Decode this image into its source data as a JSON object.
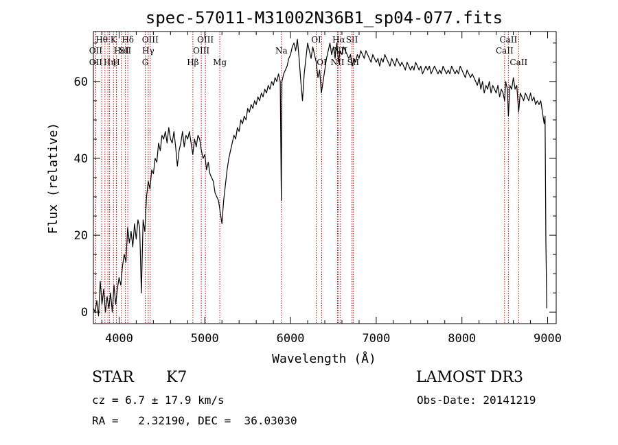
{
  "chart_data": {
    "type": "line",
    "title": "spec-57011-M31002N36B1_sp04-077.fits",
    "xlabel": "Wavelength (Å)",
    "ylabel": "Flux (relative)",
    "xlim": [
      3700,
      9100
    ],
    "ylim": [
      -3,
      73
    ],
    "xticks": [
      4000,
      5000,
      6000,
      7000,
      8000,
      9000
    ],
    "yticks": [
      0,
      20,
      40,
      60
    ],
    "grid": false,
    "series": [
      {
        "points": [
          [
            3700,
            1
          ],
          [
            3720,
            0
          ],
          [
            3740,
            3
          ],
          [
            3760,
            -1
          ],
          [
            3780,
            8
          ],
          [
            3800,
            2
          ],
          [
            3820,
            6
          ],
          [
            3840,
            0
          ],
          [
            3860,
            4
          ],
          [
            3880,
            1
          ],
          [
            3900,
            5
          ],
          [
            3920,
            0
          ],
          [
            3940,
            7
          ],
          [
            3960,
            2
          ],
          [
            3980,
            6
          ],
          [
            4000,
            9
          ],
          [
            4020,
            7
          ],
          [
            4040,
            12
          ],
          [
            4060,
            15
          ],
          [
            4080,
            13
          ],
          [
            4100,
            22
          ],
          [
            4120,
            18
          ],
          [
            4140,
            21
          ],
          [
            4160,
            17
          ],
          [
            4180,
            23
          ],
          [
            4200,
            19
          ],
          [
            4220,
            24
          ],
          [
            4240,
            22
          ],
          [
            4260,
            5
          ],
          [
            4280,
            24
          ],
          [
            4300,
            21
          ],
          [
            4320,
            30
          ],
          [
            4340,
            34
          ],
          [
            4360,
            32
          ],
          [
            4380,
            37
          ],
          [
            4400,
            36
          ],
          [
            4420,
            40
          ],
          [
            4440,
            39
          ],
          [
            4460,
            44
          ],
          [
            4480,
            42
          ],
          [
            4500,
            46
          ],
          [
            4520,
            45
          ],
          [
            4540,
            47
          ],
          [
            4560,
            44
          ],
          [
            4580,
            48
          ],
          [
            4600,
            45
          ],
          [
            4620,
            44
          ],
          [
            4640,
            47
          ],
          [
            4660,
            43
          ],
          [
            4680,
            38
          ],
          [
            4700,
            42
          ],
          [
            4720,
            44
          ],
          [
            4740,
            47
          ],
          [
            4760,
            43
          ],
          [
            4780,
            46
          ],
          [
            4800,
            45
          ],
          [
            4820,
            47
          ],
          [
            4840,
            44
          ],
          [
            4860,
            41
          ],
          [
            4880,
            45
          ],
          [
            4900,
            43
          ],
          [
            4920,
            46
          ],
          [
            4940,
            45
          ],
          [
            4960,
            42
          ],
          [
            4980,
            40
          ],
          [
            5000,
            41
          ],
          [
            5020,
            37
          ],
          [
            5040,
            39
          ],
          [
            5060,
            36
          ],
          [
            5080,
            35
          ],
          [
            5100,
            34
          ],
          [
            5120,
            31
          ],
          [
            5140,
            30
          ],
          [
            5160,
            29
          ],
          [
            5180,
            26
          ],
          [
            5200,
            23
          ],
          [
            5220,
            29
          ],
          [
            5240,
            33
          ],
          [
            5260,
            37
          ],
          [
            5280,
            40
          ],
          [
            5300,
            42
          ],
          [
            5320,
            44
          ],
          [
            5340,
            46
          ],
          [
            5360,
            45
          ],
          [
            5380,
            48
          ],
          [
            5400,
            47
          ],
          [
            5420,
            50
          ],
          [
            5440,
            49
          ],
          [
            5460,
            51
          ],
          [
            5480,
            50
          ],
          [
            5500,
            53
          ],
          [
            5520,
            52
          ],
          [
            5540,
            54
          ],
          [
            5560,
            53
          ],
          [
            5580,
            55
          ],
          [
            5600,
            54
          ],
          [
            5620,
            56
          ],
          [
            5640,
            55
          ],
          [
            5660,
            57
          ],
          [
            5680,
            56
          ],
          [
            5700,
            58
          ],
          [
            5720,
            57
          ],
          [
            5740,
            59
          ],
          [
            5760,
            58
          ],
          [
            5780,
            60
          ],
          [
            5800,
            59
          ],
          [
            5820,
            61
          ],
          [
            5840,
            60
          ],
          [
            5860,
            62
          ],
          [
            5880,
            60
          ],
          [
            5893,
            29
          ],
          [
            5900,
            60
          ],
          [
            5920,
            62
          ],
          [
            5940,
            63
          ],
          [
            5960,
            64
          ],
          [
            5980,
            66
          ],
          [
            6000,
            67
          ],
          [
            6020,
            69
          ],
          [
            6040,
            70
          ],
          [
            6060,
            68
          ],
          [
            6080,
            71
          ],
          [
            6100,
            66
          ],
          [
            6120,
            60
          ],
          [
            6140,
            55
          ],
          [
            6160,
            62
          ],
          [
            6180,
            66
          ],
          [
            6200,
            70
          ],
          [
            6220,
            68
          ],
          [
            6240,
            66
          ],
          [
            6260,
            69
          ],
          [
            6280,
            67
          ],
          [
            6300,
            65
          ],
          [
            6320,
            61
          ],
          [
            6340,
            63
          ],
          [
            6360,
            57
          ],
          [
            6380,
            60
          ],
          [
            6400,
            63
          ],
          [
            6420,
            66
          ],
          [
            6440,
            68
          ],
          [
            6460,
            70
          ],
          [
            6480,
            67
          ],
          [
            6500,
            69
          ],
          [
            6520,
            66
          ],
          [
            6540,
            70
          ],
          [
            6560,
            65
          ],
          [
            6580,
            68
          ],
          [
            6600,
            67
          ],
          [
            6620,
            69
          ],
          [
            6640,
            68
          ],
          [
            6660,
            67
          ],
          [
            6680,
            66
          ],
          [
            6700,
            67
          ],
          [
            6720,
            64
          ],
          [
            6740,
            66
          ],
          [
            6760,
            65
          ],
          [
            6780,
            67
          ],
          [
            6800,
            66
          ],
          [
            6820,
            68
          ],
          [
            6840,
            67
          ],
          [
            6860,
            66
          ],
          [
            6880,
            68
          ],
          [
            6900,
            67
          ],
          [
            6920,
            66
          ],
          [
            6940,
            65
          ],
          [
            6960,
            67
          ],
          [
            6980,
            66
          ],
          [
            7000,
            65
          ],
          [
            7020,
            66
          ],
          [
            7040,
            64
          ],
          [
            7060,
            66
          ],
          [
            7080,
            65
          ],
          [
            7100,
            67
          ],
          [
            7120,
            66
          ],
          [
            7140,
            65
          ],
          [
            7160,
            64
          ],
          [
            7180,
            66
          ],
          [
            7200,
            65
          ],
          [
            7220,
            64
          ],
          [
            7240,
            66
          ],
          [
            7260,
            65
          ],
          [
            7280,
            64
          ],
          [
            7300,
            65
          ],
          [
            7320,
            64
          ],
          [
            7340,
            63
          ],
          [
            7360,
            65
          ],
          [
            7380,
            64
          ],
          [
            7400,
            63
          ],
          [
            7420,
            64
          ],
          [
            7440,
            63
          ],
          [
            7460,
            65
          ],
          [
            7480,
            64
          ],
          [
            7500,
            63
          ],
          [
            7520,
            64
          ],
          [
            7540,
            62
          ],
          [
            7560,
            63
          ],
          [
            7580,
            64
          ],
          [
            7600,
            63
          ],
          [
            7620,
            64
          ],
          [
            7640,
            62
          ],
          [
            7660,
            63
          ],
          [
            7680,
            64
          ],
          [
            7700,
            63
          ],
          [
            7720,
            62
          ],
          [
            7740,
            63
          ],
          [
            7760,
            62
          ],
          [
            7780,
            64
          ],
          [
            7800,
            63
          ],
          [
            7820,
            62
          ],
          [
            7840,
            63
          ],
          [
            7860,
            62
          ],
          [
            7880,
            64
          ],
          [
            7900,
            63
          ],
          [
            7920,
            62
          ],
          [
            7940,
            63
          ],
          [
            7960,
            62
          ],
          [
            7980,
            64
          ],
          [
            8000,
            63
          ],
          [
            8020,
            62
          ],
          [
            8040,
            61
          ],
          [
            8060,
            63
          ],
          [
            8080,
            62
          ],
          [
            8100,
            61
          ],
          [
            8120,
            62
          ],
          [
            8140,
            61
          ],
          [
            8160,
            60
          ],
          [
            8180,
            59
          ],
          [
            8200,
            61
          ],
          [
            8220,
            58
          ],
          [
            8240,
            60
          ],
          [
            8260,
            57
          ],
          [
            8280,
            59
          ],
          [
            8300,
            58
          ],
          [
            8320,
            60
          ],
          [
            8340,
            57
          ],
          [
            8360,
            59
          ],
          [
            8380,
            58
          ],
          [
            8400,
            57
          ],
          [
            8420,
            59
          ],
          [
            8440,
            56
          ],
          [
            8460,
            58
          ],
          [
            8480,
            57
          ],
          [
            8498,
            55
          ],
          [
            8510,
            60
          ],
          [
            8530,
            58
          ],
          [
            8542,
            51
          ],
          [
            8560,
            59
          ],
          [
            8580,
            58
          ],
          [
            8600,
            61
          ],
          [
            8620,
            58
          ],
          [
            8640,
            59
          ],
          [
            8662,
            52
          ],
          [
            8680,
            57
          ],
          [
            8700,
            56
          ],
          [
            8720,
            55
          ],
          [
            8740,
            57
          ],
          [
            8760,
            56
          ],
          [
            8780,
            55
          ],
          [
            8800,
            57
          ],
          [
            8820,
            55
          ],
          [
            8840,
            56
          ],
          [
            8860,
            54
          ],
          [
            8880,
            55
          ],
          [
            8900,
            54
          ],
          [
            8920,
            55
          ],
          [
            8940,
            52
          ],
          [
            8960,
            49
          ],
          [
            8970,
            51
          ],
          [
            8980,
            18
          ],
          [
            8990,
            1
          ]
        ]
      }
    ],
    "lines": [
      {
        "x": 3797,
        "label": "Hθ",
        "row": 1
      },
      {
        "x": 3727,
        "label": "OII",
        "row": 2
      },
      {
        "x": 3727,
        "label": "OII",
        "row": 3
      },
      {
        "x": 3835,
        "label": "",
        "row": 0
      },
      {
        "x": 3869,
        "label": "",
        "row": 0
      },
      {
        "x": 3889,
        "label": "Hη",
        "row": 3
      },
      {
        "x": 3934,
        "label": "K",
        "row": 1
      },
      {
        "x": 3968,
        "label": "H",
        "row": 3
      },
      {
        "x": 3970,
        "label": "",
        "row": 0
      },
      {
        "x": 4026,
        "label": "HeI",
        "row": 2
      },
      {
        "x": 4072,
        "label": "SII",
        "row": 2
      },
      {
        "x": 4102,
        "label": "Hδ",
        "row": 1
      },
      {
        "x": 4305,
        "label": "G",
        "row": 3
      },
      {
        "x": 4340,
        "label": "Hγ",
        "row": 2
      },
      {
        "x": 4363,
        "label": "OIII",
        "row": 1
      },
      {
        "x": 4861,
        "label": "Hβ",
        "row": 3
      },
      {
        "x": 4959,
        "label": "OIII",
        "row": 2
      },
      {
        "x": 5007,
        "label": "OIII",
        "row": 1
      },
      {
        "x": 5175,
        "label": "Mg",
        "row": 3
      },
      {
        "x": 5894,
        "label": "Na",
        "row": 2
      },
      {
        "x": 6300,
        "label": "OI",
        "row": 1
      },
      {
        "x": 6364,
        "label": "OI",
        "row": 3
      },
      {
        "x": 6548,
        "label": "NII",
        "row": 3
      },
      {
        "x": 6563,
        "label": "Hα",
        "row": 1
      },
      {
        "x": 6583,
        "label": "NII",
        "row": 2
      },
      {
        "x": 6717,
        "label": "SII",
        "row": 1
      },
      {
        "x": 6731,
        "label": "SII",
        "row": 3
      },
      {
        "x": 8498,
        "label": "CaII",
        "row": 2
      },
      {
        "x": 8542,
        "label": "CaII",
        "row": 1
      },
      {
        "x": 8662,
        "label": "CaII",
        "row": 3
      }
    ],
    "colors": {
      "line": "#000000",
      "marker_line": "#c00000"
    }
  },
  "info": {
    "object_class": "STAR",
    "subclass": "K7",
    "survey": "LAMOST DR3",
    "cz": "cz = 6.7 ± 17.9 km/s",
    "obs_date": "Obs-Date: 20141219",
    "radec": "RA =   2.32190, DEC =  36.03030"
  }
}
